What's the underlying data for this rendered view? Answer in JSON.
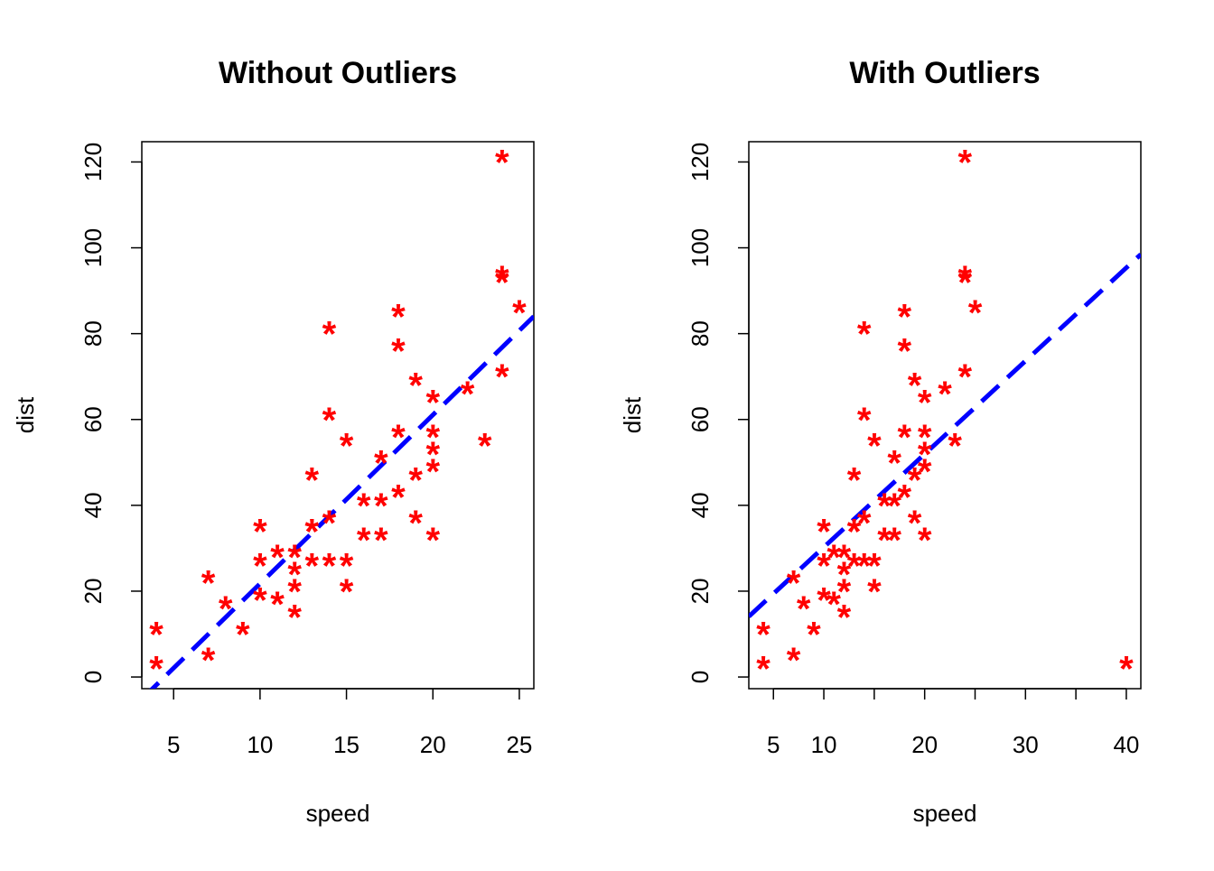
{
  "colors": {
    "points": "#ff0000",
    "fit_line": "#0000ff",
    "axis": "#000000",
    "background": "#ffffff"
  },
  "chart_data": [
    {
      "type": "scatter",
      "title": "Without Outliers",
      "xlabel": "speed",
      "ylabel": "dist",
      "xlim": [
        3.16,
        25.84
      ],
      "ylim": [
        -2.72,
        124.72
      ],
      "xticks": [
        5,
        10,
        15,
        20,
        25
      ],
      "xtick_labels": [
        "5",
        "10",
        "15",
        "20",
        "25"
      ],
      "yticks": [
        0,
        20,
        40,
        60,
        80,
        100,
        120
      ],
      "ytick_labels": [
        "0",
        "20",
        "40",
        "60",
        "80",
        "100",
        "120"
      ],
      "marker": "*",
      "grid": false,
      "series": [
        {
          "x": [
            4,
            4,
            7,
            7,
            8,
            9,
            10,
            10,
            10,
            11,
            11,
            12,
            12,
            12,
            12,
            13,
            13,
            13,
            13,
            14,
            14,
            14,
            14,
            15,
            15,
            15,
            16,
            16,
            17,
            17,
            17,
            18,
            18,
            18,
            18,
            19,
            19,
            19,
            20,
            20,
            20,
            20,
            20,
            22,
            23,
            24,
            24,
            24,
            24,
            25
          ],
          "y": [
            2,
            10,
            4,
            22,
            16,
            10,
            18,
            26,
            34,
            17,
            28,
            14,
            20,
            24,
            28,
            26,
            34,
            34,
            46,
            26,
            36,
            60,
            80,
            20,
            26,
            54,
            32,
            40,
            32,
            40,
            50,
            42,
            56,
            76,
            84,
            36,
            46,
            68,
            32,
            48,
            52,
            56,
            64,
            66,
            54,
            70,
            92,
            93,
            120,
            85
          ]
        }
      ],
      "fit_line": {
        "intercept": -17.579,
        "slope": 3.932,
        "style": "dashed"
      }
    },
    {
      "type": "scatter",
      "title": "With Outliers",
      "xlabel": "speed",
      "ylabel": "dist",
      "xlim": [
        2.56,
        41.44
      ],
      "ylim": [
        -2.72,
        124.72
      ],
      "xticks": [
        5,
        10,
        15,
        20,
        25,
        30,
        35,
        40
      ],
      "xtick_labels": [
        "5",
        "10",
        "",
        "20",
        "",
        "30",
        "",
        "40"
      ],
      "yticks": [
        0,
        20,
        40,
        60,
        80,
        100,
        120
      ],
      "ytick_labels": [
        "0",
        "20",
        "40",
        "60",
        "80",
        "100",
        "120"
      ],
      "marker": "*",
      "grid": false,
      "series": [
        {
          "x": [
            4,
            4,
            7,
            7,
            8,
            9,
            10,
            10,
            10,
            11,
            11,
            12,
            12,
            12,
            12,
            13,
            13,
            13,
            13,
            14,
            14,
            14,
            14,
            15,
            15,
            15,
            16,
            16,
            17,
            17,
            17,
            18,
            18,
            18,
            18,
            19,
            19,
            19,
            20,
            20,
            20,
            20,
            20,
            22,
            23,
            24,
            24,
            24,
            24,
            25,
            40
          ],
          "y": [
            2,
            10,
            4,
            22,
            16,
            10,
            18,
            26,
            34,
            17,
            28,
            14,
            20,
            24,
            28,
            26,
            34,
            34,
            46,
            26,
            36,
            60,
            80,
            20,
            26,
            54,
            32,
            40,
            32,
            40,
            50,
            42,
            56,
            76,
            84,
            36,
            46,
            68,
            32,
            48,
            52,
            56,
            64,
            66,
            54,
            70,
            92,
            93,
            120,
            85,
            2
          ]
        }
      ],
      "fit_line": {
        "intercept": 8.55,
        "slope": 2.17,
        "style": "dashed"
      }
    }
  ]
}
